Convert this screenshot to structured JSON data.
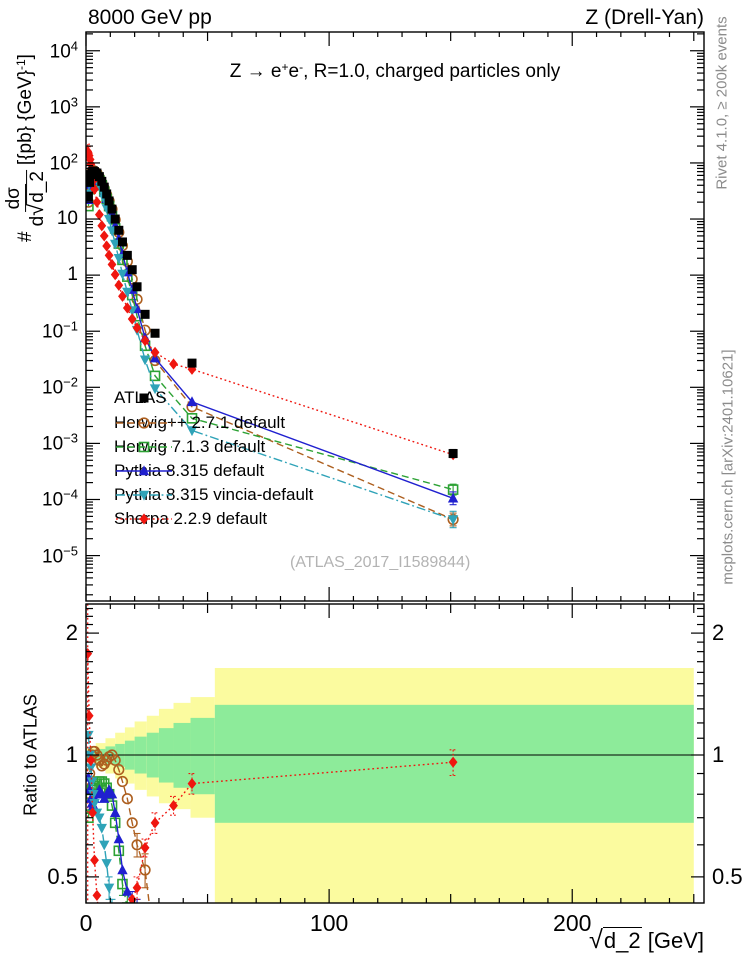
{
  "header": {
    "left": "8000 GeV pp",
    "right": "Z (Drell-Yan)"
  },
  "title": {
    "pre": "Z → e",
    "sup1": "+",
    "mid": "e",
    "sup2": "-",
    "post": ", R=1.0, charged particles only"
  },
  "ylabel": {
    "hash": "#",
    "num": "dσ",
    "den_d": "d",
    "sqrt": "√",
    "den_rad": "d_2",
    "units_open": "[{pb} {GeV}",
    "units_sup": "-1",
    "units_close": "]"
  },
  "xlabel": {
    "sqrt": "√",
    "rad": "d_2",
    "units": " [GeV]"
  },
  "ratio_ylabel": "Ratio to ATLAS",
  "watermark": "(ATLAS_2017_I1589844)",
  "side": {
    "top": "Rivet 4.1.0, ≥ 200k events",
    "bottom": "mcplots.cern.ch [arXiv:2401.10621]"
  },
  "legend": [
    {
      "label": "ATLAS",
      "series": 0
    },
    {
      "label": "Herwig++ 2.7.1 default",
      "series": 1
    },
    {
      "label": "Herwig 7.1.3 default",
      "series": 2
    },
    {
      "label": "Pythia 8.315 default",
      "series": 3
    },
    {
      "label": "Pythia 8.315 vincia-default",
      "series": 4
    },
    {
      "label": "Sherpa 2.2.9 default",
      "series": 5
    }
  ],
  "chart_data": {
    "type": "line",
    "title": "Z -> e+e-, R=1.0, charged particles only",
    "xlabel": "sqrt(d_2) [GeV]",
    "ylabel": "# dsigma/d sqrt(d_2) [{pb} {GeV}^-1]",
    "ratio_label": "Ratio to ATLAS",
    "x_axis": {
      "lim": [
        0,
        254.2
      ],
      "major_ticks": [
        0,
        100,
        200
      ],
      "minor_step": 10,
      "mid_step": 50
    },
    "y_axis": {
      "lim": [
        1.55e-06,
        21600.0
      ],
      "tick_exponents": [
        4,
        3,
        2,
        1,
        0,
        -1,
        -2,
        -3,
        -4,
        -5
      ]
    },
    "ratio_axis": {
      "lim": [
        0.431,
        2.36
      ],
      "ticks": [
        2,
        1,
        0.5
      ],
      "tick_labels": [
        "2",
        "1",
        "0.5"
      ]
    },
    "band": {
      "yellow": "#fbfb9f",
      "green": "#8deb9a",
      "bins": [
        [
          0,
          4,
          0.96,
          1.04,
          0.98,
          1.02
        ],
        [
          4,
          8,
          0.93,
          1.07,
          0.965,
          1.035
        ],
        [
          8,
          12,
          0.9,
          1.1,
          0.95,
          1.05
        ],
        [
          12,
          16,
          0.875,
          1.135,
          0.935,
          1.065
        ],
        [
          16,
          20,
          0.85,
          1.17,
          0.92,
          1.085
        ],
        [
          20,
          25,
          0.82,
          1.21,
          0.9,
          1.11
        ],
        [
          25,
          30,
          0.79,
          1.25,
          0.88,
          1.135
        ],
        [
          30,
          36,
          0.76,
          1.3,
          0.855,
          1.165
        ],
        [
          36,
          43,
          0.735,
          1.345,
          0.83,
          1.2
        ],
        [
          43,
          53,
          0.7,
          1.39,
          0.8,
          1.235
        ],
        [
          53,
          250,
          0.4,
          1.64,
          0.68,
          1.33
        ]
      ]
    },
    "ratio_ref": 1,
    "sherpa_full_err_x": 0.7,
    "series": [
      {
        "name": "ATLAS",
        "color": "#000000",
        "line": "none",
        "marker": "fsquare",
        "main": [
          [
            1,
            25,
            0.1
          ],
          [
            1.5,
            45
          ],
          [
            2,
            62
          ],
          [
            2.5,
            70
          ],
          [
            3,
            72
          ],
          [
            3.5,
            70
          ],
          [
            4.5,
            66
          ],
          [
            5.5,
            57
          ],
          [
            6.5,
            47
          ],
          [
            7.5,
            37
          ],
          [
            8.5,
            28
          ],
          [
            9.5,
            21
          ],
          [
            10.7,
            15
          ],
          [
            12,
            10
          ],
          [
            13.5,
            6.3
          ],
          [
            15,
            3.9
          ],
          [
            17,
            2.25
          ],
          [
            19,
            1.25
          ],
          [
            21,
            0.62
          ],
          [
            24.3,
            0.2,
            0.06
          ],
          [
            28.4,
            0.092,
            0.07
          ],
          [
            43.6,
            0.027,
            0.08
          ],
          [
            151,
            0.00066,
            0.18
          ]
        ],
        "ratio": []
      },
      {
        "name": "Herwig++ 2.7.1 default",
        "color": "#ad5f1f",
        "line": "dash",
        "marker": "ocircle",
        "main": [
          [
            1,
            20
          ],
          [
            1.5,
            40
          ],
          [
            2,
            60
          ],
          [
            2.5,
            70
          ],
          [
            3,
            73
          ],
          [
            3.5,
            71
          ],
          [
            4.5,
            66
          ],
          [
            5.5,
            55
          ],
          [
            6.5,
            44
          ],
          [
            7.5,
            35
          ],
          [
            8.5,
            27
          ],
          [
            9.5,
            21
          ],
          [
            10.7,
            15
          ],
          [
            12,
            9.7
          ],
          [
            13.5,
            5.8
          ],
          [
            15,
            3.35
          ],
          [
            17,
            1.75
          ],
          [
            19,
            0.85
          ],
          [
            21,
            0.37
          ],
          [
            24.3,
            0.104
          ],
          [
            28.4,
            0.03
          ],
          [
            43.6,
            0.0045
          ],
          [
            151,
            4.4e-05,
            0.3
          ]
        ],
        "ratio": [
          [
            1,
            0.8
          ],
          [
            1.5,
            0.9
          ],
          [
            2,
            0.96
          ],
          [
            2.5,
            1.0
          ],
          [
            3,
            1.02
          ],
          [
            3.5,
            1.02
          ],
          [
            4.5,
            1.0
          ],
          [
            5.5,
            0.97
          ],
          [
            6.5,
            0.94
          ],
          [
            7.5,
            0.95
          ],
          [
            8.5,
            0.97
          ],
          [
            9.5,
            0.99
          ],
          [
            10.7,
            1.0
          ],
          [
            12,
            0.97
          ],
          [
            13.5,
            0.92
          ],
          [
            15,
            0.86
          ],
          [
            17,
            0.78
          ],
          [
            19,
            0.68
          ],
          [
            21,
            0.6,
            0.04
          ],
          [
            24.3,
            0.52,
            0.05
          ],
          [
            28.4,
            0.33
          ]
        ]
      },
      {
        "name": "Herwig 7.1.3 default",
        "color": "#2ca234",
        "line": "dash",
        "marker": "osquare",
        "main": [
          [
            1,
            17
          ],
          [
            1.5,
            34
          ],
          [
            2,
            50
          ],
          [
            2.5,
            57
          ],
          [
            3,
            60
          ],
          [
            3.5,
            59
          ],
          [
            4.5,
            56
          ],
          [
            5.5,
            49
          ],
          [
            6.5,
            40
          ],
          [
            7.5,
            31
          ],
          [
            8.5,
            23
          ],
          [
            9.5,
            17
          ],
          [
            10.7,
            11.2
          ],
          [
            12,
            6.8
          ],
          [
            13.5,
            3.65
          ],
          [
            15,
            1.87
          ],
          [
            17,
            0.94
          ],
          [
            19,
            0.44
          ],
          [
            21,
            0.185
          ],
          [
            24.3,
            0.055
          ],
          [
            28.4,
            0.016
          ],
          [
            43.6,
            0.0028
          ],
          [
            151,
            0.00015,
            0.25
          ]
        ],
        "ratio": [
          [
            1,
            0.7
          ],
          [
            1.5,
            0.75
          ],
          [
            2,
            0.8
          ],
          [
            2.5,
            0.82
          ],
          [
            3,
            0.83
          ],
          [
            3.5,
            0.84
          ],
          [
            4.5,
            0.85
          ],
          [
            5.5,
            0.86
          ],
          [
            6.5,
            0.86
          ],
          [
            7.5,
            0.85
          ],
          [
            8.5,
            0.83
          ],
          [
            9.5,
            0.8
          ],
          [
            10.7,
            0.75
          ],
          [
            12,
            0.68
          ],
          [
            13.5,
            0.58
          ],
          [
            15,
            0.48,
            0.03
          ],
          [
            17,
            0.42,
            0.04
          ],
          [
            19,
            0.35,
            0.05
          ]
        ]
      },
      {
        "name": "Pythia 8.315 default",
        "color": "#2020cf",
        "line": "solid",
        "marker": "triup",
        "main": [
          [
            1,
            22
          ],
          [
            1.5,
            41
          ],
          [
            2,
            55
          ],
          [
            2.5,
            60
          ],
          [
            3,
            61
          ],
          [
            3.5,
            59
          ],
          [
            4.5,
            55
          ],
          [
            5.5,
            48
          ],
          [
            6.5,
            39
          ],
          [
            7.5,
            30
          ],
          [
            8.5,
            23
          ],
          [
            9.5,
            17.5
          ],
          [
            10.7,
            12.4
          ],
          [
            12,
            7.6
          ],
          [
            13.5,
            4.4
          ],
          [
            15,
            2.4
          ],
          [
            17,
            1.13
          ],
          [
            19,
            0.55
          ],
          [
            21,
            0.25
          ],
          [
            24.3,
            0.076
          ],
          [
            28.4,
            0.033
          ],
          [
            43.6,
            0.0055
          ],
          [
            151,
            0.000105,
            0.3
          ]
        ],
        "ratio": [
          [
            1,
            0.88
          ],
          [
            1.5,
            0.82
          ],
          [
            2,
            0.78
          ],
          [
            2.5,
            0.76
          ],
          [
            3,
            0.75
          ],
          [
            3.5,
            0.78
          ],
          [
            4.5,
            0.8
          ],
          [
            5.5,
            0.82
          ],
          [
            6.5,
            0.8
          ],
          [
            7.5,
            0.78
          ],
          [
            8.5,
            0.8
          ],
          [
            9.5,
            0.82
          ],
          [
            10.7,
            0.8
          ],
          [
            12,
            0.72
          ],
          [
            13.5,
            0.62
          ],
          [
            15,
            0.52
          ],
          [
            17,
            0.46
          ],
          [
            19,
            0.42,
            0.04
          ],
          [
            21,
            0.4,
            0.04
          ],
          [
            24.3,
            0.38,
            0.05
          ],
          [
            28.4,
            0.36,
            0.06
          ]
        ]
      },
      {
        "name": "Pythia 8.315 vincia-default",
        "color": "#2fa3b8",
        "line": "dashdot",
        "marker": "tridown",
        "main": [
          [
            1,
            28
          ],
          [
            1.5,
            48
          ],
          [
            2,
            59
          ],
          [
            2.5,
            62
          ],
          [
            3,
            60
          ],
          [
            3.5,
            56
          ],
          [
            4.5,
            50
          ],
          [
            5.5,
            42
          ],
          [
            6.5,
            32
          ],
          [
            7.5,
            23
          ],
          [
            8.5,
            15.5
          ],
          [
            9.5,
            10
          ],
          [
            10.7,
            6.2
          ],
          [
            12,
            3.6
          ],
          [
            13.5,
            2.0
          ],
          [
            15,
            1.05
          ],
          [
            17,
            0.5
          ],
          [
            19,
            0.235
          ],
          [
            21,
            0.105
          ],
          [
            24.3,
            0.031
          ],
          [
            28.4,
            0.0095
          ],
          [
            43.6,
            0.0017
          ],
          [
            151,
            4.4e-05,
            0.4
          ]
        ],
        "ratio": [
          [
            1,
            1.12
          ],
          [
            1.5,
            1.0
          ],
          [
            2,
            0.93
          ],
          [
            2.5,
            0.86
          ],
          [
            3,
            0.8
          ],
          [
            3.5,
            0.76
          ],
          [
            4.5,
            0.72
          ],
          [
            5.5,
            0.7
          ],
          [
            6.5,
            0.66
          ],
          [
            7.5,
            0.6
          ],
          [
            8.5,
            0.54
          ],
          [
            9.5,
            0.47,
            0.03
          ],
          [
            10.7,
            0.4,
            0.04
          ],
          [
            12,
            0.33
          ]
        ]
      },
      {
        "name": "Sherpa 2.2.9 default",
        "color": "#ef160f",
        "line": "dot",
        "marker": "diamond",
        "main": [
          [
            0.7,
            160,
            0.35
          ],
          [
            1,
            150,
            0.3
          ],
          [
            1.3,
            135
          ],
          [
            1.7,
            115
          ],
          [
            2,
            95
          ],
          [
            2.5,
            68
          ],
          [
            3,
            48
          ],
          [
            3.5,
            34
          ],
          [
            4.5,
            20
          ],
          [
            5.5,
            12
          ],
          [
            6.5,
            7.6
          ],
          [
            7.5,
            5.0
          ],
          [
            8.5,
            3.3
          ],
          [
            9.5,
            2.25
          ],
          [
            10.7,
            1.55
          ],
          [
            12,
            1.02
          ],
          [
            13.5,
            0.66
          ],
          [
            15,
            0.42
          ],
          [
            17,
            0.26
          ],
          [
            19,
            0.165
          ],
          [
            21,
            0.115
          ],
          [
            24.3,
            0.068
          ],
          [
            28.4,
            0.042
          ],
          [
            36,
            0.026
          ],
          [
            43.6,
            0.021
          ],
          [
            151,
            0.00063,
            0.12
          ]
        ],
        "ratio": [
          [
            0.7,
            1.78
          ],
          [
            1.3,
            1.25
          ],
          [
            2,
            0.97
          ],
          [
            2.7,
            0.72
          ],
          [
            3.5,
            0.55
          ],
          [
            4.5,
            0.45
          ],
          [
            6,
            0.36
          ],
          [
            10,
            0.31
          ],
          [
            15,
            0.37
          ],
          [
            19,
            0.44
          ],
          [
            21,
            0.47,
            0.03
          ],
          [
            24.3,
            0.59,
            0.03
          ],
          [
            28.4,
            0.68,
            0.04
          ],
          [
            36,
            0.75,
            0.04
          ],
          [
            43.6,
            0.85,
            0.05
          ],
          [
            151,
            0.96,
            0.07
          ]
        ]
      }
    ]
  }
}
